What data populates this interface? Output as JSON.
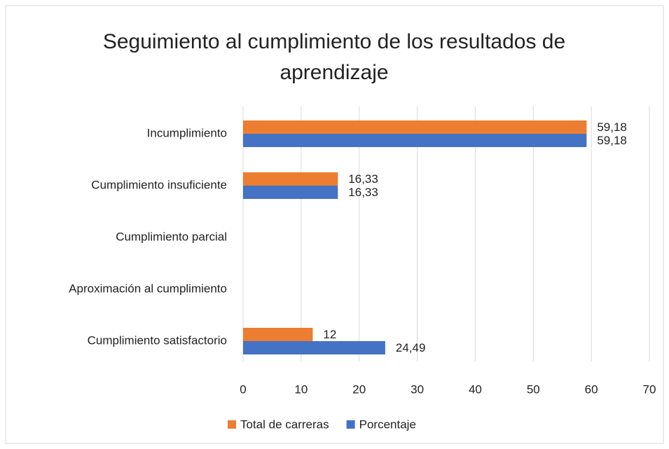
{
  "chart_data": {
    "type": "hbar",
    "title": "Seguimiento al cumplimiento de los resultados de aprendizaje",
    "categories": [
      "Incumplimiento",
      "Cumplimiento insuficiente",
      "Cumplimiento parcial",
      "Aproximación al cumplimiento",
      "Cumplimiento satisfactorio"
    ],
    "series": [
      {
        "name": "Total de carreras",
        "color": "#ED7D31",
        "values": [
          59.18,
          16.33,
          null,
          null,
          12
        ],
        "value_labels": [
          "59,18",
          "16,33",
          null,
          null,
          "12"
        ]
      },
      {
        "name": "Porcentaje",
        "color": "#4472C4",
        "values": [
          59.18,
          16.33,
          null,
          null,
          24.49
        ],
        "value_labels": [
          "59,18",
          "16,33",
          null,
          null,
          "24,49"
        ]
      }
    ],
    "xlim": [
      0,
      70
    ],
    "xticks": [
      0,
      10,
      20,
      30,
      40,
      50,
      60,
      70
    ],
    "grid": true,
    "legend": "bottom"
  }
}
